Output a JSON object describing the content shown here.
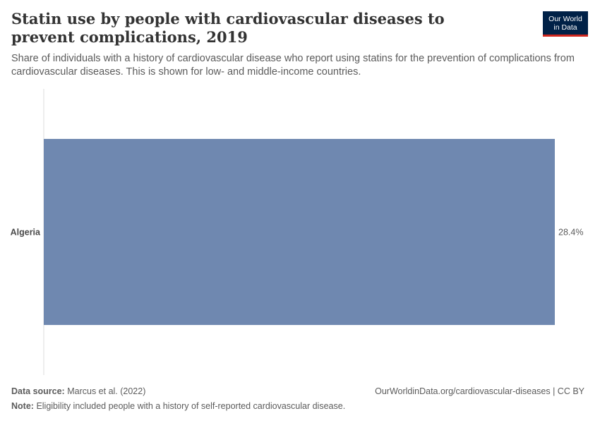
{
  "header": {
    "title": "Statin use by people with cardiovascular diseases to prevent complications, 2019",
    "subtitle": "Share of individuals with a history of cardiovascular disease who report using statins for the prevention of complications from cardiovascular diseases. This is shown for low- and middle-income countries."
  },
  "logo": {
    "line1": "Our World",
    "line2": "in Data",
    "bg_color": "#002147",
    "accent_color": "#ce261e"
  },
  "chart_data": {
    "type": "bar",
    "orientation": "horizontal",
    "categories": [
      "Algeria"
    ],
    "values": [
      28.4
    ],
    "value_labels": [
      "28.4%"
    ],
    "unit": "%",
    "bar_color": "#6f88b0",
    "xlim": [
      0,
      28.4
    ],
    "grid": false
  },
  "footer": {
    "source_label": "Data source:",
    "source_text": "Marcus et al. (2022)",
    "url_text": "OurWorldinData.org/cardiovascular-diseases | CC BY",
    "note_label": "Note:",
    "note_text": "Eligibility included people with a history of self-reported cardiovascular disease."
  }
}
